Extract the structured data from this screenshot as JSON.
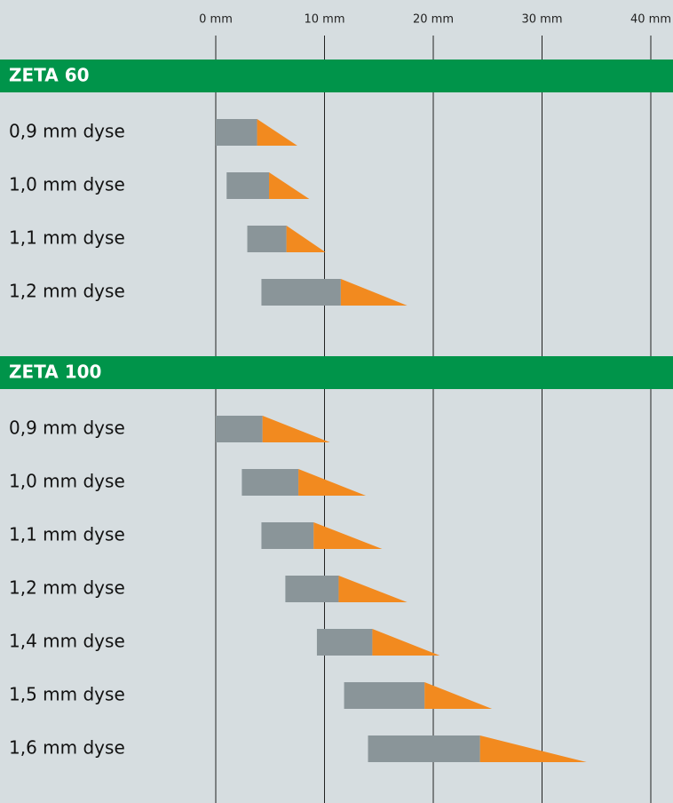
{
  "chart_data": {
    "type": "range-bar",
    "xlim": [
      0,
      40
    ],
    "xticks": [
      {
        "value": 0,
        "label": "0 mm"
      },
      {
        "value": 10,
        "label": "10 mm"
      },
      {
        "value": 20,
        "label": "20 mm"
      },
      {
        "value": 30,
        "label": "30 mm"
      },
      {
        "value": 40,
        "label": "40 mm"
      }
    ],
    "grid": true,
    "colors": {
      "bar": "#8a9599",
      "tip": "#f28a1f",
      "header": "#00944a",
      "background": "#d6dde0",
      "grid": "#222222"
    },
    "groups": [
      {
        "name": "ZETA 60",
        "categories": [
          "0,9 mm dyse",
          "1,0 mm dyse",
          "1,1 mm dyse",
          "1,2 mm dyse"
        ],
        "start": [
          0,
          1.0,
          2.9,
          4.2
        ],
        "end": [
          3.8,
          4.9,
          6.5,
          11.5
        ],
        "tip": [
          7.5,
          8.6,
          10.1,
          17.6
        ]
      },
      {
        "name": "ZETA 100",
        "categories": [
          "0,9 mm dyse",
          "1,0 mm dyse",
          "1,1 mm dyse",
          "1,2 mm dyse",
          "1,4 mm dyse",
          "1,5 mm dyse",
          "1,6 mm dyse"
        ],
        "start": [
          0,
          2.4,
          4.2,
          6.4,
          9.3,
          11.8,
          14.0
        ],
        "end": [
          4.3,
          7.6,
          9.0,
          11.3,
          14.4,
          19.2,
          24.3
        ],
        "tip": [
          10.5,
          13.8,
          15.3,
          17.6,
          20.6,
          25.4,
          34.1
        ]
      }
    ]
  }
}
